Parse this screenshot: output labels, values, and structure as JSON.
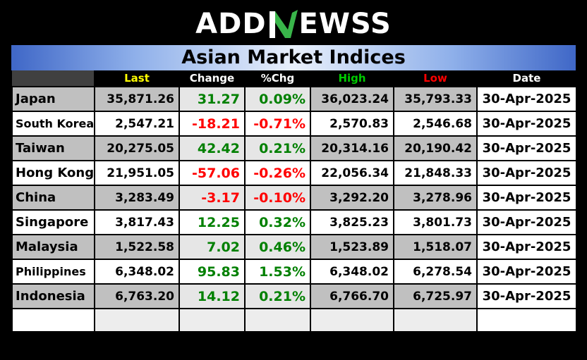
{
  "logo": {
    "left": "ADD",
    "right": "EWSS",
    "brand_color": "#39b54a"
  },
  "title": "Asian Market Indices",
  "headers": {
    "last": "Last",
    "change": "Change",
    "pct": "%Chg",
    "high": "High",
    "low": "Low",
    "date": "Date"
  },
  "header_colors": {
    "last": "#ffff00",
    "change": "#ffffff",
    "pct": "#ffffff",
    "high": "#00cc00",
    "low": "#ff0000",
    "date": "#ffffff"
  },
  "rows": [
    {
      "name": "Japan",
      "last": "35,871.26",
      "change": "31.27",
      "pct": "0.09%",
      "high": "36,023.24",
      "low": "35,793.33",
      "date": "30-Apr-2025",
      "dir": "up"
    },
    {
      "name": "South Korea",
      "last": "2,547.21",
      "change": "-18.21",
      "pct": "-0.71%",
      "high": "2,570.83",
      "low": "2,546.68",
      "date": "30-Apr-2025",
      "dir": "down"
    },
    {
      "name": "Taiwan",
      "last": "20,275.05",
      "change": "42.42",
      "pct": "0.21%",
      "high": "20,314.16",
      "low": "20,190.42",
      "date": "30-Apr-2025",
      "dir": "up"
    },
    {
      "name": "Hong Kong",
      "last": "21,951.05",
      "change": "-57.06",
      "pct": "-0.26%",
      "high": "22,056.34",
      "low": "21,848.33",
      "date": "30-Apr-2025",
      "dir": "down"
    },
    {
      "name": "China",
      "last": "3,283.49",
      "change": "-3.17",
      "pct": "-0.10%",
      "high": "3,292.20",
      "low": "3,278.96",
      "date": "30-Apr-2025",
      "dir": "down"
    },
    {
      "name": "Singapore",
      "last": "3,817.43",
      "change": "12.25",
      "pct": "0.32%",
      "high": "3,825.23",
      "low": "3,801.73",
      "date": "30-Apr-2025",
      "dir": "up"
    },
    {
      "name": "Malaysia",
      "last": "1,522.58",
      "change": "7.02",
      "pct": "0.46%",
      "high": "1,523.89",
      "low": "1,518.07",
      "date": "30-Apr-2025",
      "dir": "up"
    },
    {
      "name": "Philippines",
      "last": "6,348.02",
      "change": "95.83",
      "pct": "1.53%",
      "high": "6,348.02",
      "low": "6,278.54",
      "date": "30-Apr-2025",
      "dir": "up"
    },
    {
      "name": "Indonesia",
      "last": "6,763.20",
      "change": "14.12",
      "pct": "0.21%",
      "high": "6,766.70",
      "low": "6,725.97",
      "date": "30-Apr-2025",
      "dir": "up"
    }
  ]
}
